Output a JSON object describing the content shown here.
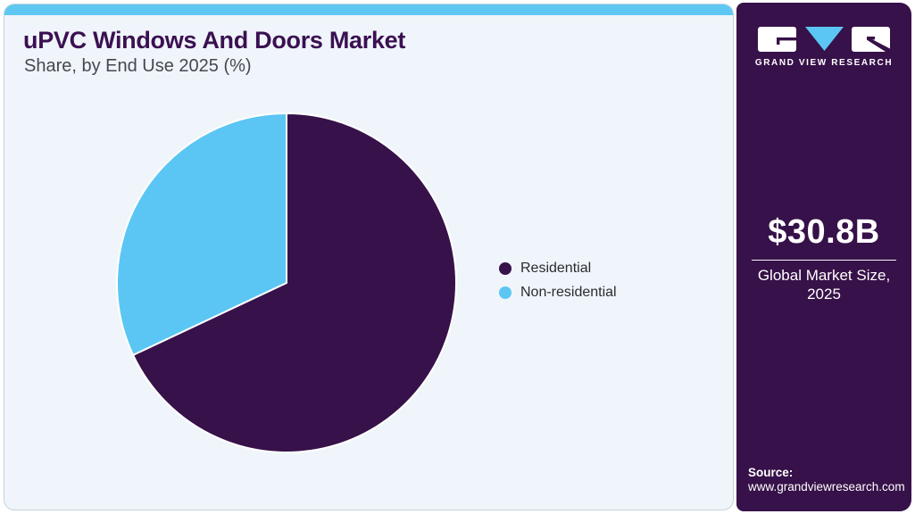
{
  "header": {
    "title": "uPVC Windows And Doors Market",
    "subtitle": "Share, by End Use 2025 (%)"
  },
  "chart_data": {
    "type": "pie",
    "title": "uPVC Windows And Doors Market Share, by End Use 2025 (%)",
    "categories": [
      "Residential",
      "Non-residential"
    ],
    "values": [
      68,
      32
    ],
    "unit": "%",
    "colors": [
      "#371149",
      "#5BC6F3"
    ],
    "start_angle": "12 o'clock",
    "direction": "clockwise",
    "legend_position": "right",
    "data_labels": false
  },
  "sidebar": {
    "brand": "GRAND VIEW RESEARCH",
    "market_size": {
      "value": "$30.8B",
      "label_line1": "Global Market Size,",
      "label_line2": "2025"
    },
    "source": {
      "label": "Source:",
      "url": "www.grandviewresearch.com"
    }
  },
  "colors": {
    "accent_blue": "#5BC6F3",
    "strip_blue": "#5EC8F2",
    "dark_purple": "#371149",
    "title_purple": "#3B1052",
    "card_background": "#EFF5FA",
    "card_border": "#C3D3DF",
    "legend_text": "#2B2B33"
  }
}
